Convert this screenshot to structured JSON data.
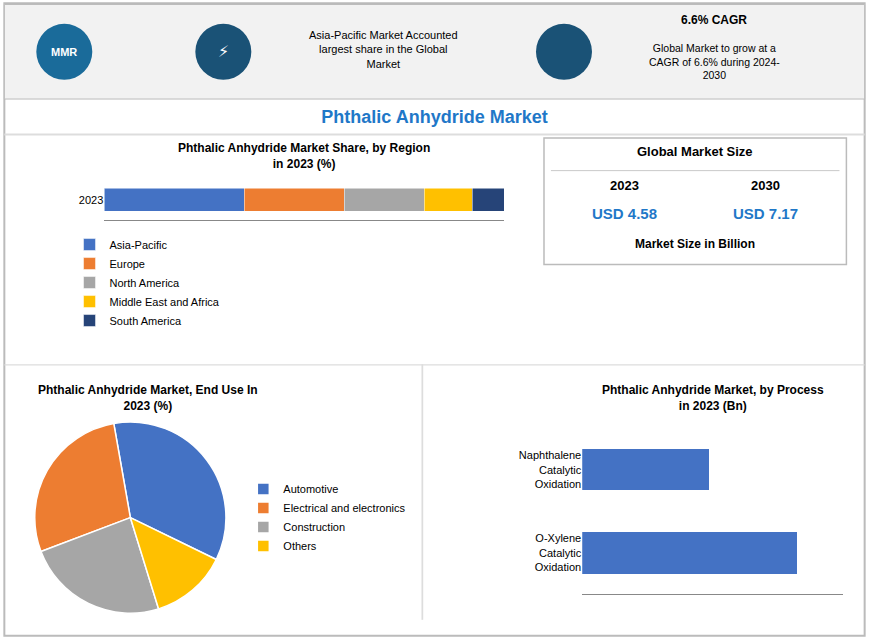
{
  "title": "Phthalic Anhydride Market",
  "color": "#1F78C8",
  "annotations": [
    {
      "text": "MMR"
    },
    {
      "text": "⚡"
    },
    {
      "text": "Asia-Pacific Market Accounted\nlargest share in the Global\nMarket"
    },
    {
      "text": "6.6% CAGR"
    },
    {
      "text": "Global Market to grow at a\nCAGR of 6.6% during 2024-\n2030"
    },
    {
      "text": "Global Market Size"
    },
    {
      "text": "2023"
    },
    {
      "text": "2030"
    },
    {
      "text": "USD 4.58",
      "color": "#1F78C8"
    },
    {
      "text": "USD 7.17",
      "color": "#1F78C8"
    },
    {
      "text": "Market Size in Billion"
    }
  ],
  "chart_data": [
    {
      "type": "bar",
      "orientation": "horizontal",
      "stacked": true,
      "title": "Phthalic Anhydride Market Share, by Region\nin 2023 (%)",
      "categories": [
        "2023"
      ],
      "series": [
        {
          "name": "Asia-Pacific",
          "color": "#4472C4",
          "values": [
            35
          ]
        },
        {
          "name": "Europe",
          "color": "#ED7D31",
          "values": [
            25
          ]
        },
        {
          "name": "North America",
          "color": "#A6A6A6",
          "values": [
            20
          ]
        },
        {
          "name": "Middle East and Africa",
          "color": "#FFC000",
          "values": [
            12
          ]
        },
        {
          "name": "South America",
          "color": "#264478",
          "values": [
            8
          ]
        }
      ],
      "xlim": [
        0,
        100
      ],
      "tick_labels": "y",
      "legend": "bottom"
    },
    {
      "type": "pie",
      "title": "Phthalic Anhydride Market, End Use In\n2023 (%)",
      "categories": [
        "Automotive",
        "Electrical and electronics",
        "Construction",
        "Others"
      ],
      "values": [
        35,
        28,
        24,
        13
      ],
      "colors": [
        "#4472C4",
        "#ED7D31",
        "#A6A6A6",
        "#FFC000"
      ],
      "legend": "right",
      "data_labels": false
    },
    {
      "type": "bar",
      "orientation": "horizontal",
      "title": "Phthalic Anhydride Market, by Process\nin 2023 (Bn)",
      "categories": [
        "Naphthalene\nCatalytic\nOxidation",
        "O-Xylene\nCatalytic\nOxidation"
      ],
      "values": [
        1.7,
        2.88
      ],
      "color": "#4472C4",
      "xlim": [
        0,
        3.5
      ],
      "tick_labels": "y"
    }
  ]
}
